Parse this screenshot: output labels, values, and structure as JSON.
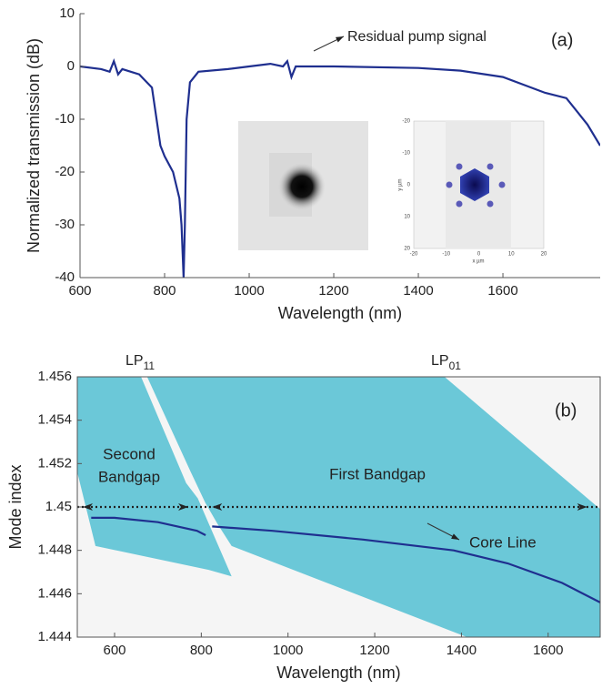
{
  "chart_data": [
    {
      "type": "line",
      "xlabel": "Wavelength (nm)",
      "ylabel": "Normalized transmission (dB)",
      "xlim": [
        600,
        1830
      ],
      "xticks": [
        600,
        800,
        1000,
        1200,
        1400,
        1600
      ],
      "ylim": [
        -40,
        10
      ],
      "yticks": [
        -40,
        -30,
        -20,
        -10,
        0,
        10
      ],
      "x": [
        600,
        650,
        670,
        680,
        690,
        700,
        740,
        770,
        790,
        800,
        820,
        835,
        840,
        845,
        848,
        852,
        860,
        880,
        950,
        1000,
        1050,
        1080,
        1090,
        1100,
        1110,
        1150,
        1200,
        1400,
        1500,
        1600,
        1700,
        1750,
        1800,
        1830
      ],
      "series": [
        {
          "color": "#1f2f8f",
          "values": [
            0,
            -0.5,
            -1,
            1,
            -1.5,
            -0.5,
            -1.5,
            -4,
            -15,
            -17,
            -20,
            -25,
            -30,
            -40,
            -30,
            -10,
            -3,
            -1,
            -0.5,
            0,
            0.5,
            0,
            1,
            -2,
            0,
            0,
            0,
            -0.3,
            -0.8,
            -2,
            -5,
            -6,
            -11,
            -15
          ]
        }
      ],
      "annotations": [
        "Residual pump signal",
        "(a)"
      ],
      "inset": {
        "xlabel": "x µm",
        "ylabel": "y µm",
        "xticks": [
          -20,
          -10,
          0,
          10,
          20
        ],
        "yticks": [
          -20,
          -10,
          0,
          10,
          20
        ]
      }
    },
    {
      "type": "line",
      "xlabel": "Wavelength (nm)",
      "ylabel": "Mode index",
      "xlim": [
        514,
        1720
      ],
      "xticks": [
        600,
        800,
        1000,
        1200,
        1400,
        1600
      ],
      "ylim": [
        1.444,
        1.456
      ],
      "yticks": [
        1.444,
        1.446,
        1.448,
        1.45,
        1.452,
        1.454,
        1.456
      ],
      "hline": 1.45,
      "areas": [
        {
          "label": [
            "Second",
            "Bandgap"
          ],
          "color": "#6bc8d8",
          "x": [
            514,
            661,
            765,
            792,
            870,
            817,
            556,
            535,
            514
          ],
          "y": [
            1.456,
            1.456,
            1.4511,
            1.4504,
            1.4468,
            1.4471,
            1.4482,
            1.4499,
            1.4516
          ]
        },
        {
          "label": "First Bandgap",
          "color": "#6bc8d8",
          "x": [
            675,
            1361,
            1720,
            1720,
            1413,
            870,
            838,
            809,
            776
          ],
          "y": [
            1.456,
            1.456,
            1.4499,
            1.444,
            1.444,
            1.4482,
            1.4492,
            1.4502,
            1.4516
          ]
        }
      ],
      "x": [
        546,
        600,
        700,
        790,
        810,
        null,
        825,
        964,
        1173,
        1382,
        1507,
        1632,
        1720
      ],
      "series": [
        {
          "name": "Core Line",
          "color": "#1f2f8f",
          "values": [
            1.4495,
            1.4495,
            1.4493,
            1.4489,
            1.4487,
            null,
            1.4491,
            1.4489,
            1.4485,
            1.448,
            1.4474,
            1.4465,
            1.4456
          ]
        }
      ],
      "mode_labels": [
        {
          "text": "LP",
          "subscript": "11"
        },
        {
          "text": "LP",
          "subscript": "01"
        }
      ],
      "annotations": [
        "(b)"
      ]
    }
  ]
}
